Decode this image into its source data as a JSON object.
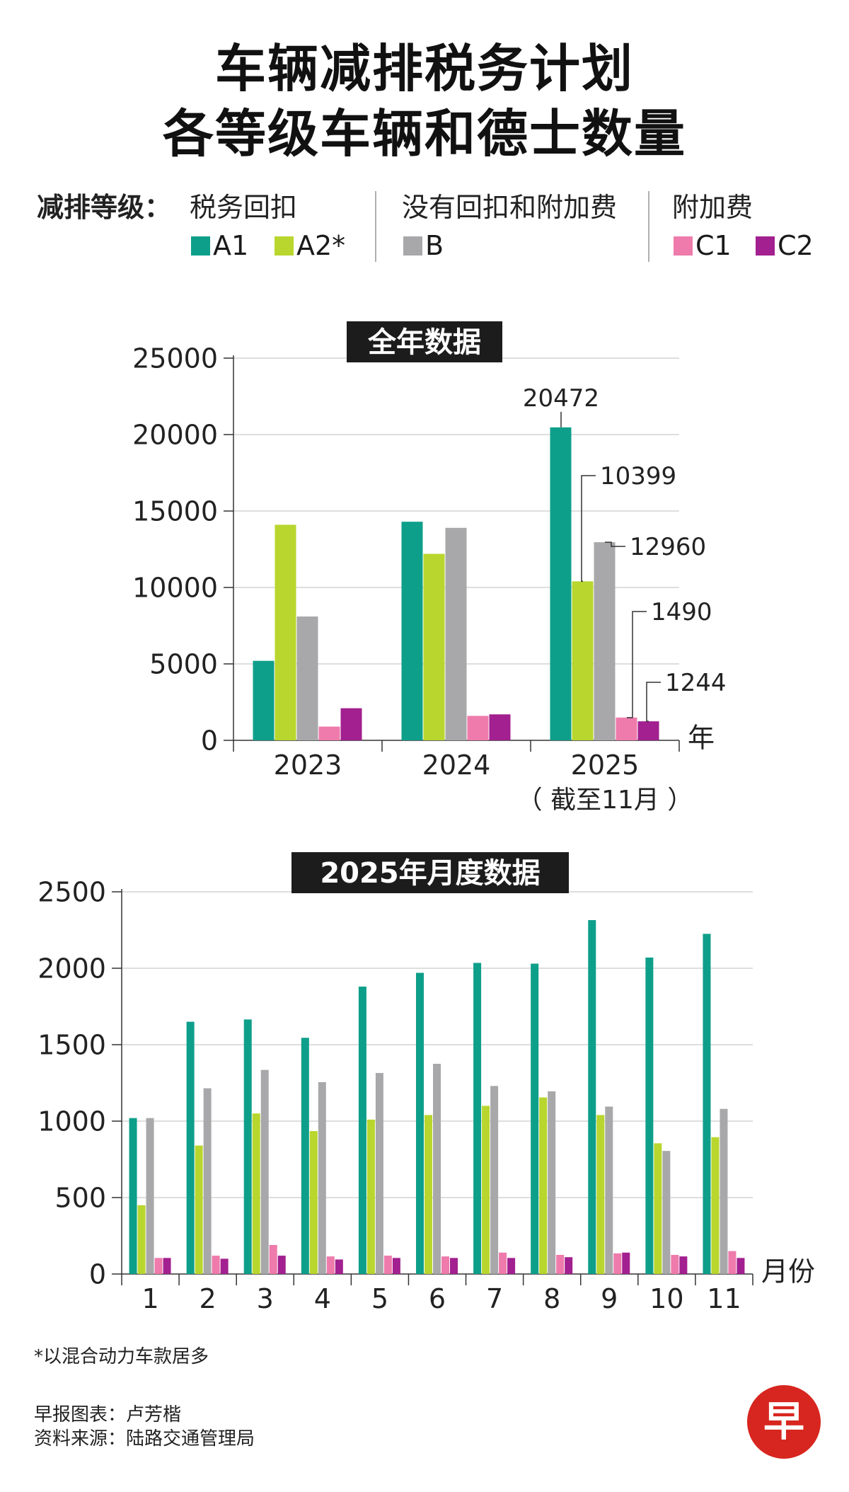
{
  "title": {
    "line1": "车辆减排税务计划",
    "line2": "各等级车辆和德士数量"
  },
  "legend": {
    "heading": "减排等级：",
    "group_rebate": "税务回扣",
    "group_none": "没有回扣和附加费",
    "group_surcharge": "附加费",
    "items": [
      {
        "key": "A1",
        "label": "A1",
        "color": "#0e9f8a"
      },
      {
        "key": "A2",
        "label": "A2*",
        "color": "#b8d62e"
      },
      {
        "key": "B",
        "label": "B",
        "color": "#a8a8aa"
      },
      {
        "key": "C1",
        "label": "C1",
        "color": "#ee7bab"
      },
      {
        "key": "C2",
        "label": "C2",
        "color": "#a2208f"
      }
    ]
  },
  "chart_data": [
    {
      "type": "bar",
      "title": "全年数据",
      "categories": [
        "2023",
        "2024",
        "2025"
      ],
      "category_sublabels": [
        "",
        "",
        "（ 截至11月 ）"
      ],
      "xlabel": "年",
      "ylabel": "",
      "ylim": [
        0,
        25000
      ],
      "yticks": [
        "0",
        "5000",
        "10000",
        "15000",
        "20000",
        "25000"
      ],
      "grid": true,
      "series": [
        {
          "name": "A1",
          "values": [
            5200,
            14300,
            20472
          ]
        },
        {
          "name": "A2*",
          "values": [
            14100,
            12200,
            10399
          ]
        },
        {
          "name": "B",
          "values": [
            8100,
            13900,
            12960
          ]
        },
        {
          "name": "C1",
          "values": [
            900,
            1600,
            1490
          ]
        },
        {
          "name": "C2",
          "values": [
            2100,
            1700,
            1244
          ]
        }
      ],
      "annotations": [
        {
          "series": "A1",
          "category": "2025",
          "text": "20472"
        },
        {
          "series": "A2*",
          "category": "2025",
          "text": "10399"
        },
        {
          "series": "B",
          "category": "2025",
          "text": "12960"
        },
        {
          "series": "C1",
          "category": "2025",
          "text": "1490"
        },
        {
          "series": "C2",
          "category": "2025",
          "text": "1244"
        }
      ]
    },
    {
      "type": "bar",
      "title": "2025年月度数据",
      "categories": [
        "1",
        "2",
        "3",
        "4",
        "5",
        "6",
        "7",
        "8",
        "9",
        "10",
        "11"
      ],
      "xlabel": "月份",
      "ylabel": "",
      "ylim": [
        0,
        2500
      ],
      "yticks": [
        "0",
        "500",
        "1000",
        "1500",
        "2000",
        "2500"
      ],
      "grid": true,
      "series": [
        {
          "name": "A1",
          "values": [
            1020,
            1650,
            1665,
            1545,
            1880,
            1970,
            2035,
            2030,
            2315,
            2070,
            2225
          ]
        },
        {
          "name": "A2*",
          "values": [
            450,
            840,
            1050,
            935,
            1010,
            1040,
            1100,
            1155,
            1040,
            855,
            895
          ]
        },
        {
          "name": "B",
          "values": [
            1020,
            1215,
            1335,
            1255,
            1315,
            1375,
            1230,
            1195,
            1095,
            805,
            1080
          ]
        },
        {
          "name": "C1",
          "values": [
            105,
            120,
            190,
            115,
            120,
            115,
            140,
            125,
            135,
            125,
            150
          ]
        },
        {
          "name": "C2",
          "values": [
            105,
            100,
            120,
            95,
            105,
            105,
            105,
            110,
            140,
            115,
            105
          ]
        }
      ]
    }
  ],
  "footnote": "*以混合动力车款居多",
  "credits": {
    "chart_by": "早报图表：卢芳楷",
    "source": "资料来源：陆路交通管理局"
  },
  "logo": {
    "char": "早",
    "color": "#d7261f"
  }
}
